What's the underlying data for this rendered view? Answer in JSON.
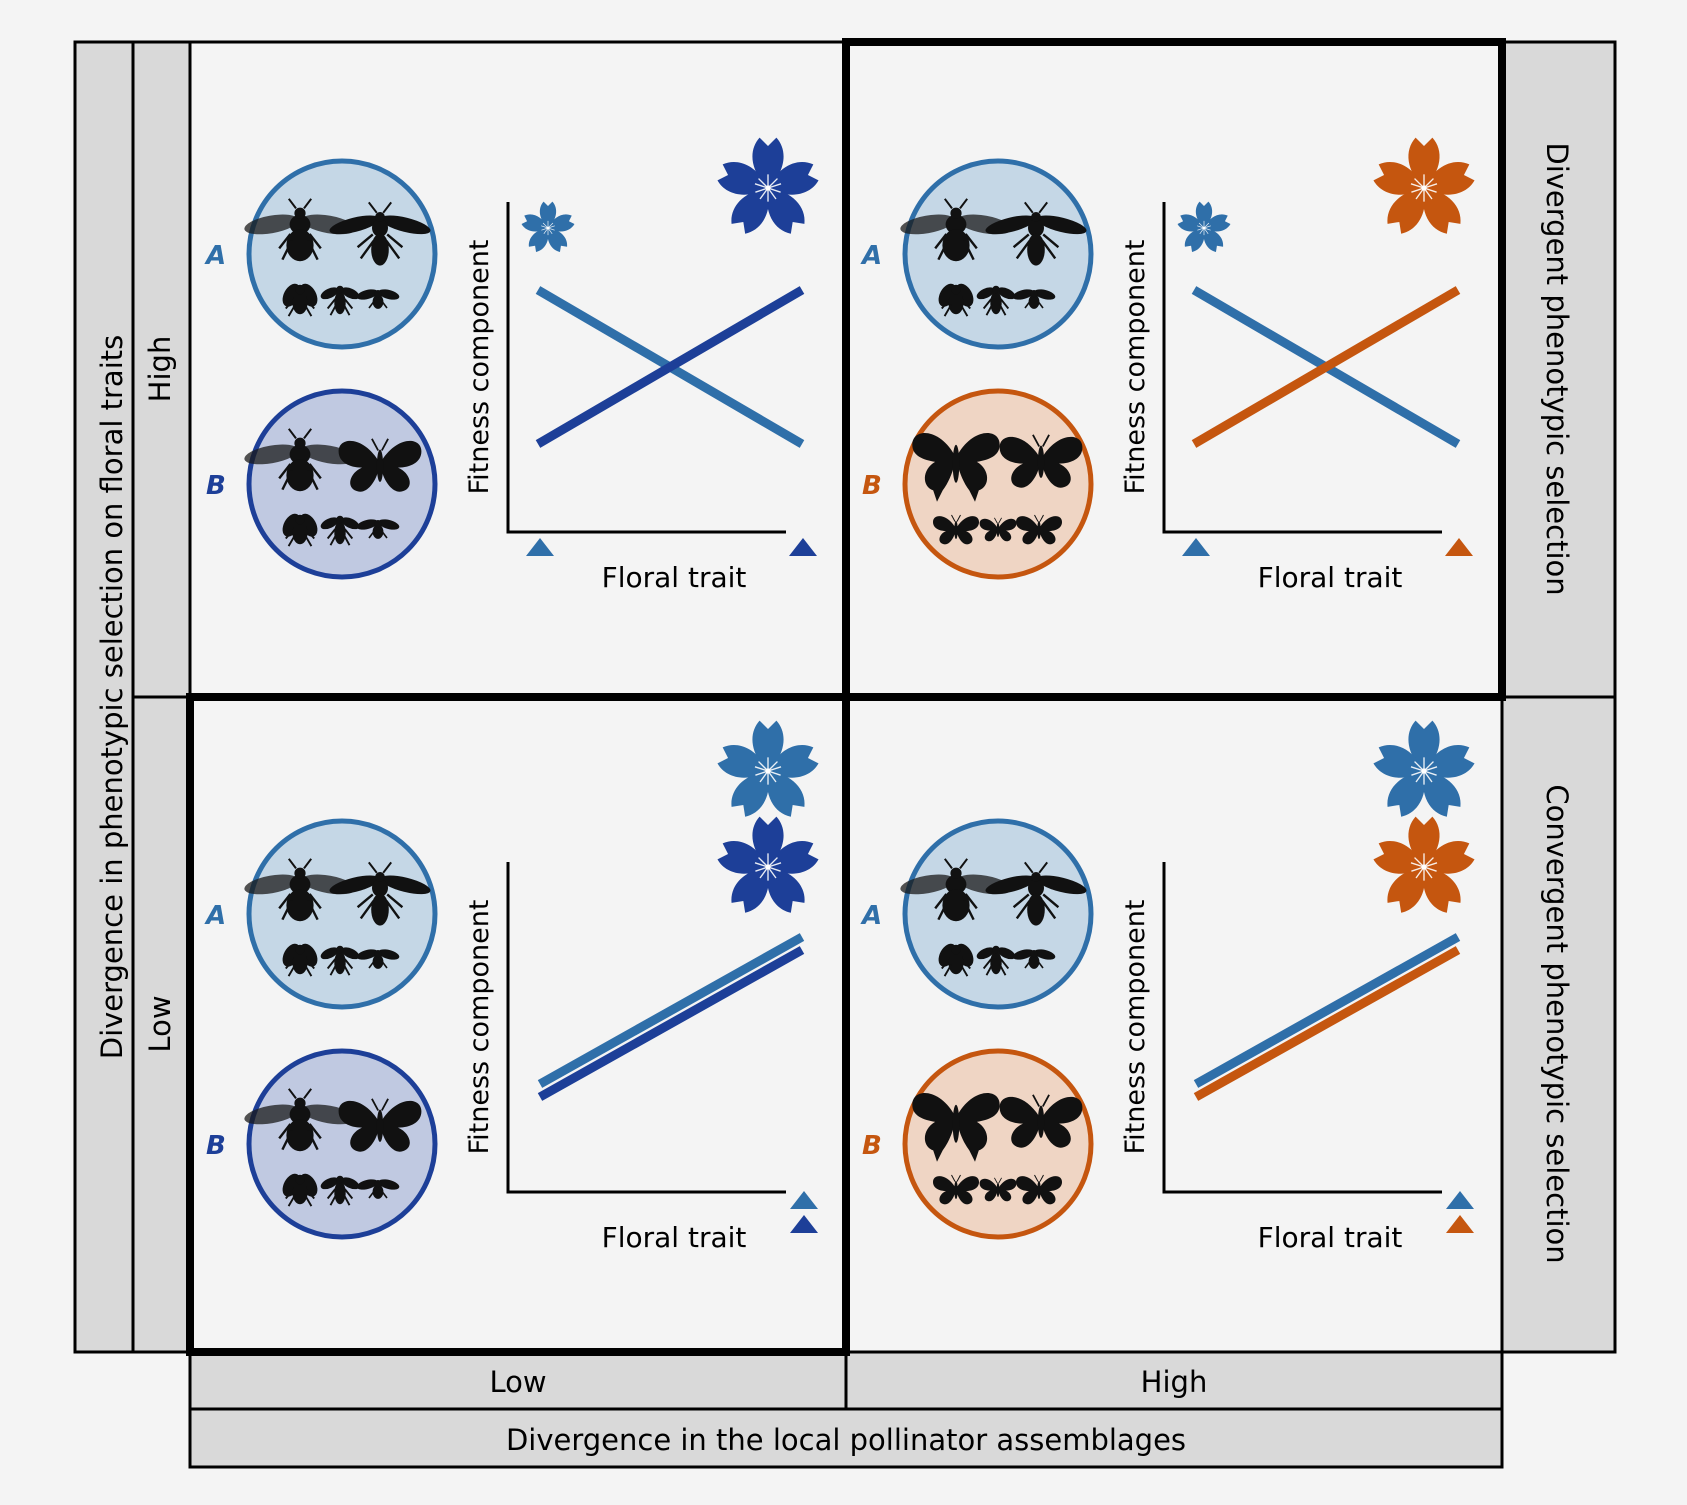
{
  "colors": {
    "blue_a": "#2f6fa9",
    "blue_b": "#1d3f98",
    "orange": "#c5560f",
    "circle_a_fill": "#c5d7e6",
    "circle_b_fill": "#c0c9e1",
    "circle_orange_fill": "#efd5c4",
    "panel_bg": "#f4f4f4",
    "band_bg": "#d9d9d9"
  },
  "axis_titles": {
    "left_outer": "Divergence in phenotypic selection on floral traits",
    "bottom_outer": "Divergence in the local pollinator assemblages"
  },
  "levels": {
    "left_high": "High",
    "left_low": "Low",
    "bottom_low": "Low",
    "bottom_high": "High"
  },
  "outcomes": {
    "top": "Divergent phenotypic selection",
    "bottom": "Convergent phenotypic selection"
  },
  "panels": [
    {
      "id": "high-low",
      "label_a": "A",
      "label_b": "B",
      "b_color": "#1d3f98",
      "b_assemblage": "bees-and-butterfly",
      "xlabel": "Floral trait",
      "ylabel": "Fitness component",
      "highlight": false
    },
    {
      "id": "high-high",
      "label_a": "A",
      "label_b": "B",
      "b_color": "#c5560f",
      "b_assemblage": "butterflies",
      "xlabel": "Floral trait",
      "ylabel": "Fitness component",
      "highlight": true
    },
    {
      "id": "low-low",
      "label_a": "A",
      "label_b": "B",
      "b_color": "#1d3f98",
      "b_assemblage": "bees-and-butterfly",
      "xlabel": "Floral trait",
      "ylabel": "Fitness component",
      "highlight": true
    },
    {
      "id": "low-high",
      "label_a": "A",
      "label_b": "B",
      "b_color": "#c5560f",
      "b_assemblage": "butterflies",
      "xlabel": "Floral trait",
      "ylabel": "Fitness component",
      "highlight": false
    }
  ]
}
